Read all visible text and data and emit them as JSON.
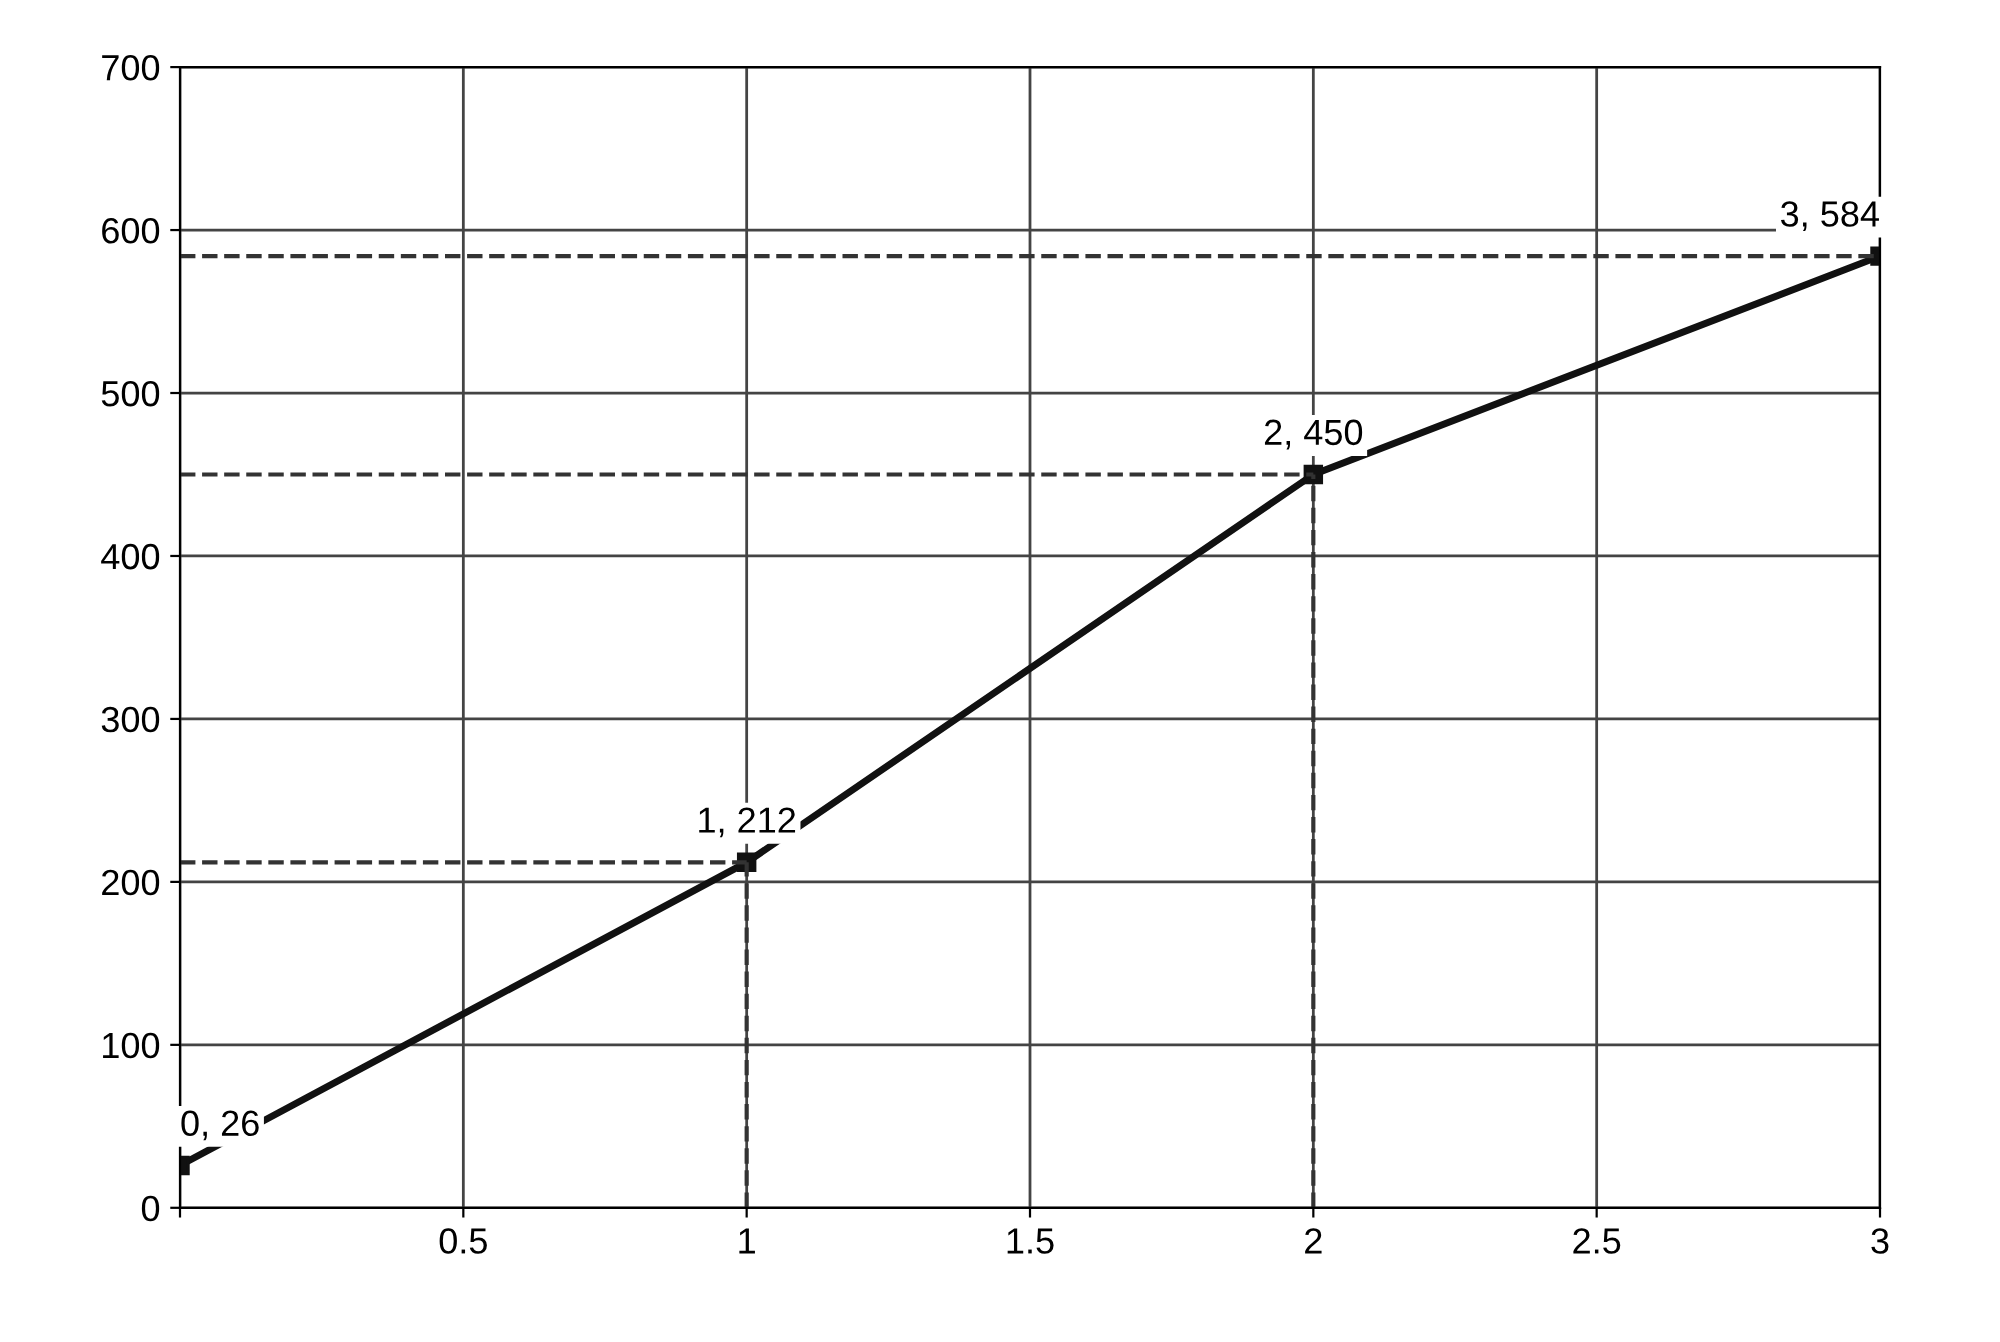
{
  "chart_data": {
    "type": "line",
    "x": [
      0,
      1,
      2,
      3
    ],
    "series": [
      {
        "color": "#111111",
        "values": [
          26,
          212,
          450,
          584
        ]
      }
    ],
    "xlim": [
      0,
      3
    ],
    "ylim": [
      0,
      700
    ],
    "xticks": [
      {
        "value": 0,
        "label": null
      },
      0.5,
      1,
      1.5,
      2,
      2.5,
      3
    ],
    "yticks": [
      0,
      100,
      200,
      300,
      400,
      500,
      600,
      700
    ],
    "value_labels": [
      "0, 26",
      "1, 212",
      "2, 450",
      "3, 584"
    ],
    "ref_lines": [
      {
        "axis": "y",
        "value": 212,
        "line_style": "dashed",
        "color": "#333333"
      },
      {
        "axis": "y",
        "value": 450,
        "line_style": "dashed",
        "color": "#333333"
      },
      {
        "axis": "y",
        "value": 584,
        "line_style": "dashed",
        "color": "#333333"
      },
      {
        "axis": "x",
        "value": 1,
        "line_style": "dashed",
        "color": "#333333"
      },
      {
        "axis": "x",
        "value": 2,
        "line_style": "dashed",
        "color": "#333333"
      }
    ],
    "grid": true,
    "marker": "square",
    "line_style": "solid",
    "legend": false
  }
}
